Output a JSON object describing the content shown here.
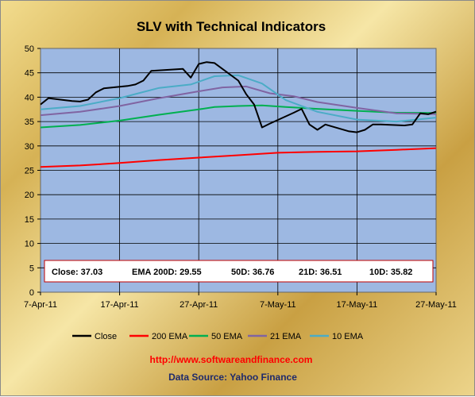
{
  "chart_data": {
    "type": "line",
    "title": "SLV with Technical Indicators",
    "xlabel": "",
    "ylabel": "",
    "x_range": [
      "2011-04-07",
      "2011-05-27"
    ],
    "x_tick_labels": [
      "7-Apr-11",
      "17-Apr-11",
      "27-Apr-11",
      "7-May-11",
      "17-May-11",
      "27-May-11"
    ],
    "ylim": [
      0,
      50
    ],
    "y_ticks": [
      0,
      5,
      10,
      15,
      20,
      25,
      30,
      35,
      40,
      45,
      50
    ],
    "grid": true,
    "legend_position": "bottom",
    "plot_background": "#9db8e2",
    "series": [
      {
        "name": "Close",
        "color": "#000000",
        "points": [
          [
            "2011-04-07",
            38.5
          ],
          [
            "2011-04-08",
            39.8
          ],
          [
            "2011-04-11",
            39.2
          ],
          [
            "2011-04-12",
            39.1
          ],
          [
            "2011-04-13",
            39.5
          ],
          [
            "2011-04-14",
            41.0
          ],
          [
            "2011-04-15",
            41.8
          ],
          [
            "2011-04-18",
            42.3
          ],
          [
            "2011-04-19",
            42.6
          ],
          [
            "2011-04-20",
            43.4
          ],
          [
            "2011-04-21",
            45.4
          ],
          [
            "2011-04-25",
            45.8
          ],
          [
            "2011-04-26",
            44.0
          ],
          [
            "2011-04-27",
            46.8
          ],
          [
            "2011-04-28",
            47.2
          ],
          [
            "2011-04-29",
            47.0
          ],
          [
            "2011-05-02",
            43.4
          ],
          [
            "2011-05-03",
            40.6
          ],
          [
            "2011-05-04",
            38.5
          ],
          [
            "2011-05-05",
            33.8
          ],
          [
            "2011-05-06",
            34.6
          ],
          [
            "2011-05-09",
            36.8
          ],
          [
            "2011-05-10",
            37.6
          ],
          [
            "2011-05-11",
            34.4
          ],
          [
            "2011-05-12",
            33.3
          ],
          [
            "2011-05-13",
            34.4
          ],
          [
            "2011-05-16",
            33.0
          ],
          [
            "2011-05-17",
            32.8
          ],
          [
            "2011-05-18",
            33.3
          ],
          [
            "2011-05-19",
            34.4
          ],
          [
            "2011-05-20",
            34.4
          ],
          [
            "2011-05-23",
            34.2
          ],
          [
            "2011-05-24",
            34.4
          ],
          [
            "2011-05-25",
            36.7
          ],
          [
            "2011-05-26",
            36.5
          ],
          [
            "2011-05-27",
            37.03
          ]
        ]
      },
      {
        "name": "200 EMA",
        "color": "#ff0000",
        "points": [
          [
            "2011-04-07",
            25.7
          ],
          [
            "2011-04-12",
            26.0
          ],
          [
            "2011-04-17",
            26.5
          ],
          [
            "2011-04-22",
            27.1
          ],
          [
            "2011-04-27",
            27.6
          ],
          [
            "2011-05-02",
            28.1
          ],
          [
            "2011-05-07",
            28.6
          ],
          [
            "2011-05-12",
            28.8
          ],
          [
            "2011-05-17",
            28.9
          ],
          [
            "2011-05-22",
            29.2
          ],
          [
            "2011-05-27",
            29.55
          ]
        ]
      },
      {
        "name": "50 EMA",
        "color": "#00b050",
        "points": [
          [
            "2011-04-07",
            33.8
          ],
          [
            "2011-04-12",
            34.3
          ],
          [
            "2011-04-17",
            35.2
          ],
          [
            "2011-04-22",
            36.4
          ],
          [
            "2011-04-27",
            37.5
          ],
          [
            "2011-04-29",
            38.0
          ],
          [
            "2011-05-02",
            38.2
          ],
          [
            "2011-05-05",
            38.3
          ],
          [
            "2011-05-08",
            38.0
          ],
          [
            "2011-05-12",
            37.6
          ],
          [
            "2011-05-17",
            37.2
          ],
          [
            "2011-05-22",
            36.8
          ],
          [
            "2011-05-27",
            36.76
          ]
        ]
      },
      {
        "name": "21 EMA",
        "color": "#8064a2",
        "points": [
          [
            "2011-04-07",
            36.3
          ],
          [
            "2011-04-12",
            37.0
          ],
          [
            "2011-04-17",
            38.2
          ],
          [
            "2011-04-22",
            39.8
          ],
          [
            "2011-04-27",
            41.2
          ],
          [
            "2011-04-30",
            42.0
          ],
          [
            "2011-05-03",
            42.2
          ],
          [
            "2011-05-06",
            40.8
          ],
          [
            "2011-05-09",
            40.2
          ],
          [
            "2011-05-12",
            39.0
          ],
          [
            "2011-05-17",
            37.8
          ],
          [
            "2011-05-22",
            36.7
          ],
          [
            "2011-05-27",
            36.51
          ]
        ]
      },
      {
        "name": "10 EMA",
        "color": "#4bacc6",
        "points": [
          [
            "2011-04-07",
            37.5
          ],
          [
            "2011-04-12",
            38.2
          ],
          [
            "2011-04-17",
            39.8
          ],
          [
            "2011-04-22",
            41.9
          ],
          [
            "2011-04-26",
            42.6
          ],
          [
            "2011-04-29",
            44.3
          ],
          [
            "2011-05-02",
            44.5
          ],
          [
            "2011-05-05",
            42.8
          ],
          [
            "2011-05-08",
            39.4
          ],
          [
            "2011-05-12",
            37.0
          ],
          [
            "2011-05-17",
            35.4
          ],
          [
            "2011-05-22",
            35.0
          ],
          [
            "2011-05-27",
            35.82
          ]
        ]
      }
    ],
    "annotation_box": {
      "close": "Close: 37.03",
      "ema200": "EMA 200D: 29.55",
      "ema50": "50D: 36.76",
      "ema21": "21D: 36.51",
      "ema10": "10D: 35.82"
    }
  },
  "footer": {
    "url": "http://www.softwareandfinance.com",
    "source": "Data Source: Yahoo Finance"
  }
}
